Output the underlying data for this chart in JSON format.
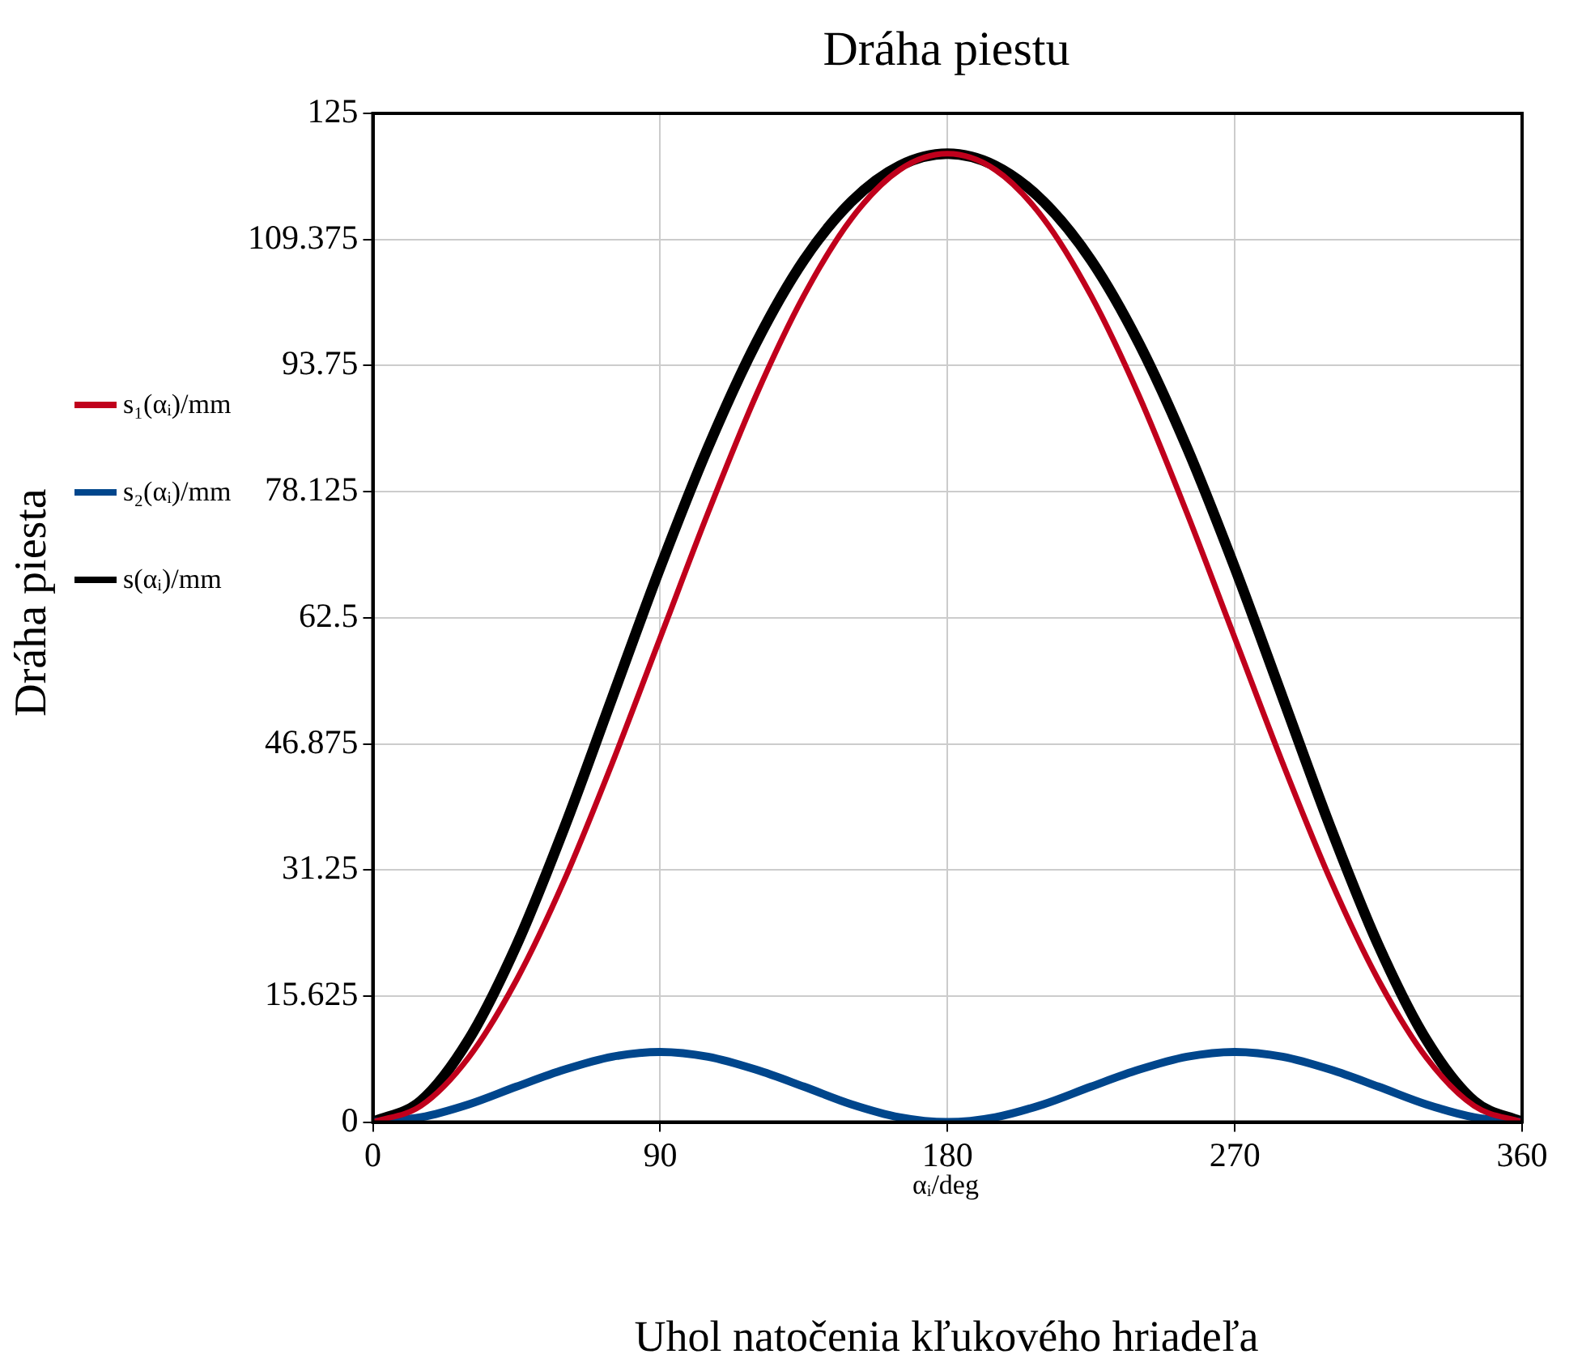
{
  "chart_data": {
    "type": "line",
    "title": "Dráha piestu",
    "xlabel": "Uhol natočenia kľukového hriadeľa",
    "ylabel": "Dráha piesta",
    "annotations": [
      "αᵢ/deg"
    ],
    "x": [
      0,
      15,
      30,
      45,
      60,
      75,
      90,
      105,
      120,
      135,
      150,
      165,
      180,
      195,
      210,
      225,
      240,
      255,
      270,
      285,
      300,
      315,
      330,
      345,
      360
    ],
    "series": [
      {
        "name": "s₁(αᵢ)/mm",
        "color": "#c0001c",
        "values": [
          0,
          2,
          8,
          17.6,
          30,
          44.5,
          60,
          75.5,
          90,
          102.4,
          112,
          118,
          120,
          118,
          112,
          102.4,
          90,
          75.5,
          60,
          44.5,
          30,
          17.6,
          8,
          2,
          0
        ]
      },
      {
        "name": "s₂(αᵢ)/mm",
        "color": "#00468c",
        "values": [
          0,
          0.6,
          2.2,
          4.4,
          6.5,
          8.1,
          8.7,
          8.1,
          6.5,
          4.4,
          2.2,
          0.6,
          0,
          0.6,
          2.2,
          4.4,
          6.5,
          8.1,
          8.7,
          8.1,
          6.5,
          4.4,
          2.2,
          0.6,
          0
        ]
      },
      {
        "name": "s(αᵢ)/mm",
        "color": "#000000",
        "values": [
          0,
          2.6,
          10.2,
          21.9,
          36.5,
          52.6,
          68.7,
          83.6,
          96.5,
          106.8,
          114.1,
          118.5,
          120,
          118.5,
          114.1,
          106.8,
          96.5,
          83.6,
          68.7,
          52.6,
          36.5,
          21.9,
          10.2,
          2.6,
          0
        ]
      }
    ],
    "xlim": [
      0,
      360
    ],
    "xticks": [
      0,
      90,
      180,
      270,
      360
    ],
    "ylim": [
      0,
      125
    ],
    "yticks": [
      0,
      15.625,
      31.25,
      46.875,
      62.5,
      78.125,
      93.75,
      109.375,
      125
    ],
    "grid": true,
    "legend": "left",
    "marker": "none",
    "line_style": "solid"
  }
}
